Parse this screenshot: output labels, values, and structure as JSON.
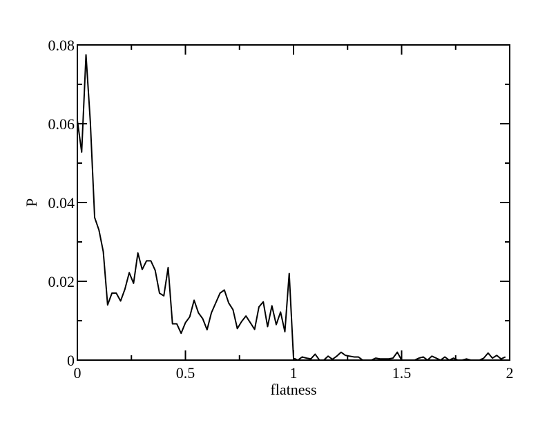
{
  "chart_data": {
    "type": "line",
    "title": "",
    "xlabel": "flatness",
    "ylabel": "P",
    "xlim": [
      0,
      2
    ],
    "ylim": [
      0,
      0.08
    ],
    "grid": false,
    "legend": "none",
    "line_color": "#000000",
    "x_ticks": [
      {
        "value": 0,
        "label": "0"
      },
      {
        "value": 0.5,
        "label": "0.5"
      },
      {
        "value": 1,
        "label": "1"
      },
      {
        "value": 1.5,
        "label": "1.5"
      },
      {
        "value": 2,
        "label": "2"
      }
    ],
    "y_ticks": [
      {
        "value": 0,
        "label": "0"
      },
      {
        "value": 0.02,
        "label": "0.02"
      },
      {
        "value": 0.04,
        "label": "0.04"
      },
      {
        "value": 0.06,
        "label": "0.06"
      },
      {
        "value": 0.08,
        "label": "0.08"
      }
    ],
    "series": [
      {
        "x": [
          0.0,
          0.02,
          0.04,
          0.06,
          0.08,
          0.1,
          0.12,
          0.14,
          0.16,
          0.18,
          0.2,
          0.22,
          0.24,
          0.26,
          0.28,
          0.3,
          0.32,
          0.34,
          0.36,
          0.38,
          0.4,
          0.42,
          0.44,
          0.46,
          0.48,
          0.5,
          0.52,
          0.54,
          0.56,
          0.58,
          0.6,
          0.62,
          0.64,
          0.66,
          0.68,
          0.7,
          0.72,
          0.74,
          0.76,
          0.78,
          0.8,
          0.82,
          0.84,
          0.86,
          0.88,
          0.9,
          0.92,
          0.94,
          0.96,
          0.98,
          1.0,
          1.02,
          1.04,
          1.06,
          1.08,
          1.1,
          1.12,
          1.14,
          1.16,
          1.18,
          1.2,
          1.22,
          1.24,
          1.26,
          1.28,
          1.3,
          1.32,
          1.34,
          1.36,
          1.38,
          1.4,
          1.42,
          1.44,
          1.46,
          1.48,
          1.5,
          1.52,
          1.54,
          1.56,
          1.58,
          1.6,
          1.62,
          1.64,
          1.66,
          1.68,
          1.7,
          1.72,
          1.74,
          1.76,
          1.78,
          1.8,
          1.82,
          1.84,
          1.86,
          1.88,
          1.9,
          1.92,
          1.94,
          1.96,
          1.98
        ],
        "y": [
          0.0608,
          0.0528,
          0.0775,
          0.0605,
          0.0362,
          0.033,
          0.0275,
          0.014,
          0.017,
          0.017,
          0.015,
          0.018,
          0.0222,
          0.0195,
          0.0272,
          0.023,
          0.0252,
          0.0252,
          0.0228,
          0.017,
          0.0163,
          0.0235,
          0.0092,
          0.0092,
          0.0068,
          0.0095,
          0.011,
          0.0152,
          0.012,
          0.0105,
          0.0077,
          0.012,
          0.0145,
          0.017,
          0.0178,
          0.0145,
          0.0128,
          0.008,
          0.0098,
          0.0112,
          0.0095,
          0.0078,
          0.0135,
          0.0148,
          0.0085,
          0.0138,
          0.009,
          0.0122,
          0.0072,
          0.022,
          0.0005,
          0.0,
          0.0008,
          0.0005,
          0.0003,
          0.0015,
          0.0,
          0.0,
          0.001,
          0.0002,
          0.001,
          0.002,
          0.0012,
          0.001,
          0.0008,
          0.0008,
          0.0,
          0.0,
          0.0,
          0.0005,
          0.0003,
          0.0003,
          0.0003,
          0.0005,
          0.002,
          0.0,
          0.0,
          0.0,
          0.0,
          0.0005,
          0.0008,
          0.0,
          0.001,
          0.0005,
          0.0,
          0.0008,
          0.0,
          0.0005,
          0.0,
          0.0,
          0.0003,
          0.0,
          0.0,
          0.0,
          0.0005,
          0.0018,
          0.0005,
          0.0012,
          0.0003,
          0.0008
        ]
      }
    ]
  }
}
